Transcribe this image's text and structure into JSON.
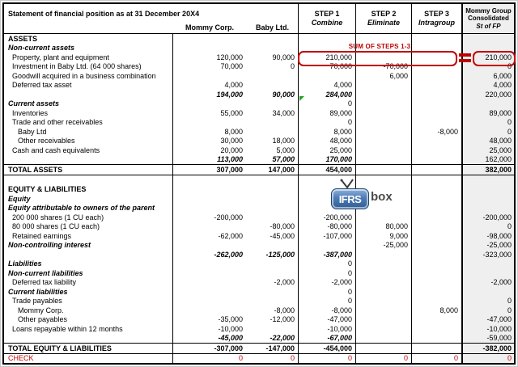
{
  "colors": {
    "accent_red": "#C00000",
    "consolidated_bg": "#EFEFEF",
    "logo_blue": "#2F5E96",
    "comment_green": "#21A121"
  },
  "header": {
    "title": "Statement of financial position as at 31 December 20X4",
    "columns": {
      "mommy": "Mommy Corp.",
      "baby": "Baby Ltd.",
      "step1_line1": "STEP 1",
      "step1_line2": "Combine",
      "step2_line1": "STEP 2",
      "step2_line2": "Eliminate",
      "step3_line1": "STEP 3",
      "step3_line2": "Intragroup",
      "cons_line1": "Mommy Group",
      "cons_line2": "Consolidated",
      "cons_line3": "St of FP"
    }
  },
  "annotations": {
    "sum_note": "SUM OF STEPS 1-3",
    "logo_text_main": "IFRS",
    "logo_text_suffix": "box"
  },
  "table": {
    "rows": [
      {
        "label": "ASSETS",
        "style": "section"
      },
      {
        "label": "Non-current assets",
        "style": "subhead"
      },
      {
        "label": "Property, plant and equipment",
        "indent": 1,
        "m": "120,000",
        "b": "90,000",
        "s1": "210,000",
        "c": "210,000"
      },
      {
        "label": "Investment in Baby Ltd. (64 000 shares)",
        "indent": 1,
        "m": "70,000",
        "b": "0",
        "s1": "70,000",
        "s2": "-70,000",
        "c": "0"
      },
      {
        "label": "Goodwill acquired in a business combination",
        "indent": 1,
        "s2": "6,000",
        "c": "6,000"
      },
      {
        "label": "Deferred tax asset",
        "indent": 1,
        "m": "4,000",
        "s1": "4,000",
        "c": "4,000"
      },
      {
        "style": "subtotal",
        "m": "194,000",
        "b": "90,000",
        "s1": "284,000",
        "c": "220,000"
      },
      {
        "label": "Current assets",
        "style": "subhead",
        "s1": "0"
      },
      {
        "label": "Inventories",
        "indent": 1,
        "m": "55,000",
        "b": "34,000",
        "s1": "89,000",
        "c": "89,000"
      },
      {
        "label": "Trade and other receivables",
        "indent": 1,
        "s1": "0",
        "c": "0"
      },
      {
        "label": "Baby Ltd",
        "indent": 2,
        "m": "8,000",
        "s1": "8,000",
        "s3": "-8,000",
        "c": "0"
      },
      {
        "label": "Other receivables",
        "indent": 2,
        "m": "30,000",
        "b": "18,000",
        "s1": "48,000",
        "c": "48,000"
      },
      {
        "label": "Cash and cash equivalents",
        "indent": 1,
        "m": "20,000",
        "b": "5,000",
        "s1": "25,000",
        "c": "25,000"
      },
      {
        "style": "subtotal",
        "m": "113,000",
        "b": "57,000",
        "s1": "170,000",
        "c": "162,000"
      },
      {
        "label": "TOTAL ASSETS",
        "style": "total",
        "m": "307,000",
        "b": "147,000",
        "s1": "454,000",
        "c": "382,000"
      },
      {
        "style": "blank"
      },
      {
        "label": "EQUITY & LIABILITIES",
        "style": "section"
      },
      {
        "label": "Equity",
        "style": "subhead"
      },
      {
        "label": "Equity attributable to owners of the parent",
        "style": "subhead"
      },
      {
        "label": "200 000 shares (1 CU each)",
        "indent": 1,
        "m": "-200,000",
        "s1": "-200,000",
        "c": "-200,000"
      },
      {
        "label": "80 000 shares (1 CU each)",
        "indent": 1,
        "b": "-80,000",
        "s1": "-80,000",
        "s2": "80,000",
        "c": "0"
      },
      {
        "label": "Retained earnings",
        "indent": 1,
        "m": "-62,000",
        "b": "-45,000",
        "s1": "-107,000",
        "s2": "9,000",
        "c": "-98,000"
      },
      {
        "label": "Non-controlling interest",
        "style": "subhead",
        "s2": "-25,000",
        "c": "-25,000"
      },
      {
        "style": "subtotal",
        "m": "-262,000",
        "b": "-125,000",
        "s1": "-387,000",
        "c": "-323,000"
      },
      {
        "label": "Liabilities",
        "style": "subhead",
        "s1": "0"
      },
      {
        "label": "Non-current liabilities",
        "style": "subhead",
        "s1": "0"
      },
      {
        "label": "Deferred tax liability",
        "indent": 1,
        "b": "-2,000",
        "s1": "-2,000",
        "c": "-2,000"
      },
      {
        "label": "Current liabilities",
        "style": "subhead",
        "s1": "0"
      },
      {
        "label": "Trade payables",
        "indent": 1,
        "s1": "0",
        "c": "0"
      },
      {
        "label": "Mommy Corp.",
        "indent": 2,
        "b": "-8,000",
        "s1": "-8,000",
        "s3": "8,000",
        "c": "0"
      },
      {
        "label": "Other payables",
        "indent": 2,
        "m": "-35,000",
        "b": "-12,000",
        "s1": "-47,000",
        "c": "-47,000"
      },
      {
        "label": "Loans repayable within 12 months",
        "indent": 1,
        "m": "-10,000",
        "s1": "-10,000",
        "c": "-10,000"
      },
      {
        "style": "subtotal",
        "m": "-45,000",
        "b": "-22,000",
        "s1": "-67,000",
        "c": "-59,000"
      },
      {
        "label": "TOTAL EQUITY & LIABILITIES",
        "style": "total",
        "m": "-307,000",
        "b": "-147,000",
        "s1": "-454,000",
        "c": "-382,000"
      },
      {
        "label": "CHECK",
        "style": "check",
        "m": "0",
        "b": "0",
        "s1": "0",
        "s2": "0",
        "s3": "0",
        "c": "0"
      }
    ]
  }
}
